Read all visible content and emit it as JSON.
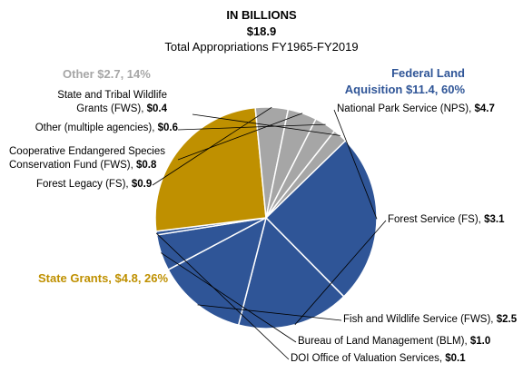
{
  "chart_data": {
    "type": "pie",
    "title": "IN BILLIONS",
    "total": "$18.9",
    "subtitle": "Total Appropriations FY1965-FY2019",
    "slices": [
      {
        "name": "National Park Service (NPS),",
        "value_label": "$4.7",
        "value": 4.7,
        "group": "federal"
      },
      {
        "name": "Forest Service (FS),",
        "value_label": "$3.1",
        "value": 3.1,
        "group": "federal"
      },
      {
        "name": "Fish and Wildlife Service (FWS),",
        "value_label": "$2.5",
        "value": 2.5,
        "group": "federal"
      },
      {
        "name": "Bureau of Land Management (BLM),",
        "value_label": "$1.0",
        "value": 1.0,
        "group": "federal"
      },
      {
        "name": "DOI Office of Valuation Services,",
        "value_label": "$0.1",
        "value": 0.1,
        "group": "federal"
      },
      {
        "name": "",
        "value_label": "",
        "value": 4.8,
        "group": "state"
      },
      {
        "name": "Forest Legacy (FS),",
        "value_label": "$0.9",
        "value": 0.9,
        "group": "other"
      },
      {
        "name": [
          "Cooperative Endangered Species",
          "Conservation Fund (FWS),"
        ],
        "value_label": "$0.8",
        "value": 0.8,
        "group": "other"
      },
      {
        "name": "Other (multiple agencies),",
        "value_label": "$0.6",
        "value": 0.6,
        "group": "other"
      },
      {
        "name": [
          "State and Tribal Wildlife",
          "Grants (FWS),"
        ],
        "value_label": "$0.4",
        "value": 0.4,
        "group": "other"
      }
    ],
    "groups": {
      "federal": {
        "label": [
          "Federal Land",
          "Aquisition $11.4, 60%"
        ],
        "color": "#2F5597"
      },
      "state": {
        "label": "State Grants, $4.8, 26%",
        "color": "#BF9000"
      },
      "other": {
        "label": "Other $2.7, 14%",
        "color": "#A6A6A6"
      }
    }
  }
}
